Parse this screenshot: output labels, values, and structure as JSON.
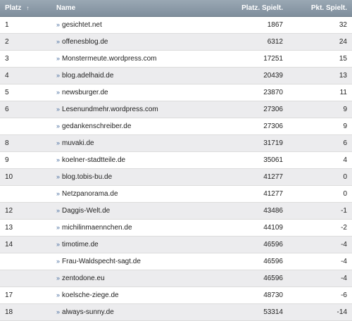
{
  "headers": {
    "rank": "Platz",
    "sort_glyph": "↑",
    "name": "Name",
    "rank_change": "Platz. Spielt.",
    "points_change": "Pkt. Spielt."
  },
  "rows": [
    {
      "rank": "1",
      "name": "gesichtet.net",
      "rank_value": "1867",
      "points": "32"
    },
    {
      "rank": "2",
      "name": "offenesblog.de",
      "rank_value": "6312",
      "points": "24"
    },
    {
      "rank": "3",
      "name": "Monstermeute.wordpress.com",
      "rank_value": "17251",
      "points": "15"
    },
    {
      "rank": "4",
      "name": "blog.adelhaid.de",
      "rank_value": "20439",
      "points": "13"
    },
    {
      "rank": "5",
      "name": "newsburger.de",
      "rank_value": "23870",
      "points": "11"
    },
    {
      "rank": "6",
      "name": "Lesenundmehr.wordpress.com",
      "rank_value": "27306",
      "points": "9"
    },
    {
      "rank": "",
      "name": "gedankenschreiber.de",
      "rank_value": "27306",
      "points": "9"
    },
    {
      "rank": "8",
      "name": "muvaki.de",
      "rank_value": "31719",
      "points": "6"
    },
    {
      "rank": "9",
      "name": "koelner-stadtteile.de",
      "rank_value": "35061",
      "points": "4"
    },
    {
      "rank": "10",
      "name": "blog.tobis-bu.de",
      "rank_value": "41277",
      "points": "0"
    },
    {
      "rank": "",
      "name": "Netzpanorama.de",
      "rank_value": "41277",
      "points": "0"
    },
    {
      "rank": "12",
      "name": "Daggis-Welt.de",
      "rank_value": "43486",
      "points": "-1"
    },
    {
      "rank": "13",
      "name": "michilinmaennchen.de",
      "rank_value": "44109",
      "points": "-2"
    },
    {
      "rank": "14",
      "name": "timotime.de",
      "rank_value": "46596",
      "points": "-4"
    },
    {
      "rank": "",
      "name": "Frau-Waldspecht-sagt.de",
      "rank_value": "46596",
      "points": "-4"
    },
    {
      "rank": "",
      "name": "zentodone.eu",
      "rank_value": "46596",
      "points": "-4"
    },
    {
      "rank": "17",
      "name": "koelsche-ziege.de",
      "rank_value": "48730",
      "points": "-6"
    },
    {
      "rank": "18",
      "name": "always-sunny.de",
      "rank_value": "53314",
      "points": "-14"
    }
  ],
  "icons": {
    "sort": "sort-ascending-icon",
    "row_link": "double-chevron-right-icon"
  },
  "colors": {
    "header_bg": "#8b99a6",
    "header_text": "#ffffff",
    "row_alt": "#ececee",
    "link_arrow": "#4a6fa0"
  }
}
